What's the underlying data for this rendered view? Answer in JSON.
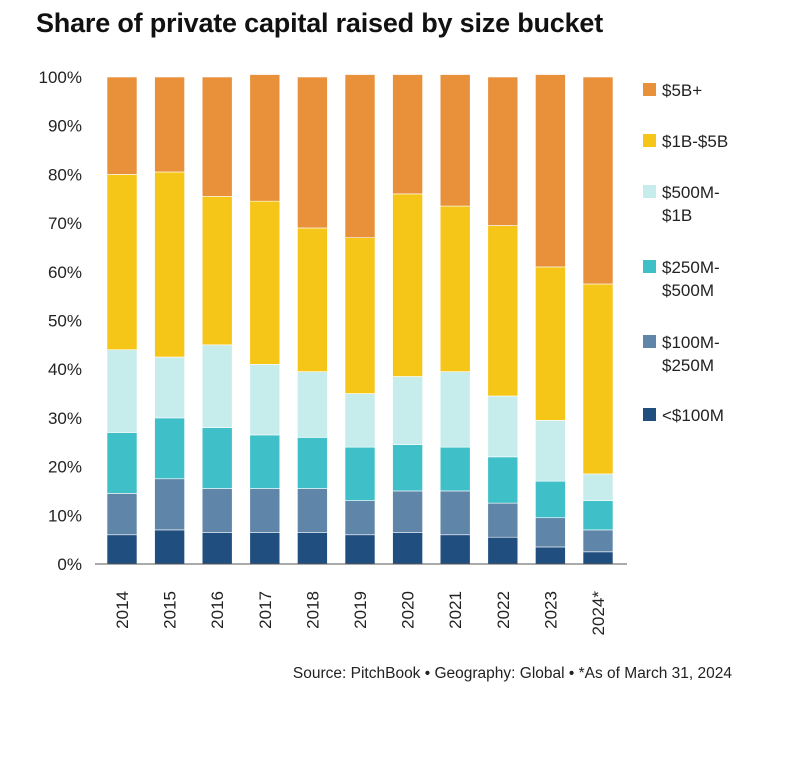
{
  "chart_data": {
    "type": "bar",
    "stacked": true,
    "title": "Share of private capital raised by size bucket",
    "categories": [
      "2014",
      "2015",
      "2016",
      "2017",
      "2018",
      "2019",
      "2020",
      "2021",
      "2022",
      "2023",
      "2024*"
    ],
    "y_ticks": [
      "0%",
      "10%",
      "20%",
      "30%",
      "40%",
      "50%",
      "60%",
      "70%",
      "80%",
      "90%",
      "100%"
    ],
    "ylim": [
      0,
      100
    ],
    "grid": false,
    "legend_position": "right",
    "series": [
      {
        "name": "<$100M",
        "color": "#1f4e7f",
        "values": [
          6,
          7,
          6.5,
          6.5,
          6.5,
          6,
          6.5,
          6,
          5.5,
          3.5,
          2.5
        ]
      },
      {
        "name": "$100M-$250M",
        "color": "#5f85a8",
        "values": [
          8.5,
          10.5,
          9,
          9,
          9,
          7,
          8.5,
          9,
          7,
          6,
          4.5
        ]
      },
      {
        "name": "$250M-$500M",
        "color": "#3fc0c9",
        "values": [
          12.5,
          12.5,
          12.5,
          11,
          10.5,
          11,
          9.5,
          9,
          9.5,
          7.5,
          6
        ]
      },
      {
        "name": "$500M-$1B",
        "color": "#c6ecec",
        "values": [
          17,
          12.5,
          17,
          14.5,
          13.5,
          11,
          14,
          15.5,
          12.5,
          12.5,
          5.5
        ]
      },
      {
        "name": "$1B-$5B",
        "color": "#f5c518",
        "values": [
          36,
          38,
          30.5,
          33.5,
          29.5,
          32,
          37.5,
          34,
          35,
          31.5,
          39
        ]
      },
      {
        "name": "$5B+",
        "color": "#e8913a",
        "values": [
          20,
          19.5,
          24.5,
          26,
          31,
          33.5,
          24.5,
          27,
          30.5,
          39.5,
          42.5
        ]
      }
    ],
    "legend": [
      {
        "series": 5,
        "lines": [
          "$5B+"
        ]
      },
      {
        "series": 4,
        "lines": [
          "$1B-$5B"
        ]
      },
      {
        "series": 3,
        "lines": [
          "$500M-",
          "$1B"
        ]
      },
      {
        "series": 2,
        "lines": [
          "$250M-",
          "$500M"
        ]
      },
      {
        "series": 1,
        "lines": [
          "$100M-",
          "$250M"
        ]
      },
      {
        "series": 0,
        "lines": [
          "<$100M"
        ]
      }
    ],
    "source": "Source: PitchBook  •  Geography: Global  •  *As of March 31, 2024"
  }
}
